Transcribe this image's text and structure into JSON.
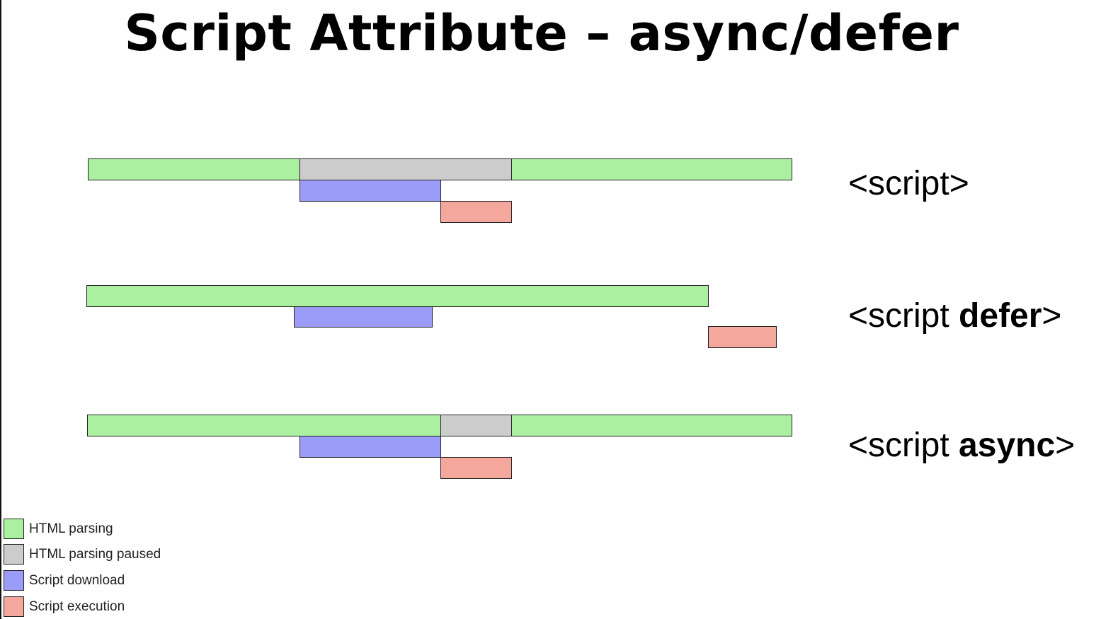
{
  "title": "Script Attribute – async/defer",
  "colors": {
    "parsing": "#aaf0a0",
    "paused": "#cccccc",
    "download": "#9a9cf8",
    "execution": "#f4a79c"
  },
  "rows": [
    {
      "label_prefix": "<script",
      "label_keyword": "",
      "label_suffix": ">"
    },
    {
      "label_prefix": "<script ",
      "label_keyword": "defer",
      "label_suffix": ">"
    },
    {
      "label_prefix": "<script ",
      "label_keyword": "async",
      "label_suffix": ">"
    }
  ],
  "legend": [
    {
      "label": "HTML parsing",
      "kind": "parsing"
    },
    {
      "label": "HTML parsing paused",
      "kind": "paused"
    },
    {
      "label": "Script download",
      "kind": "download"
    },
    {
      "label": "Script execution",
      "kind": "execution"
    }
  ]
}
